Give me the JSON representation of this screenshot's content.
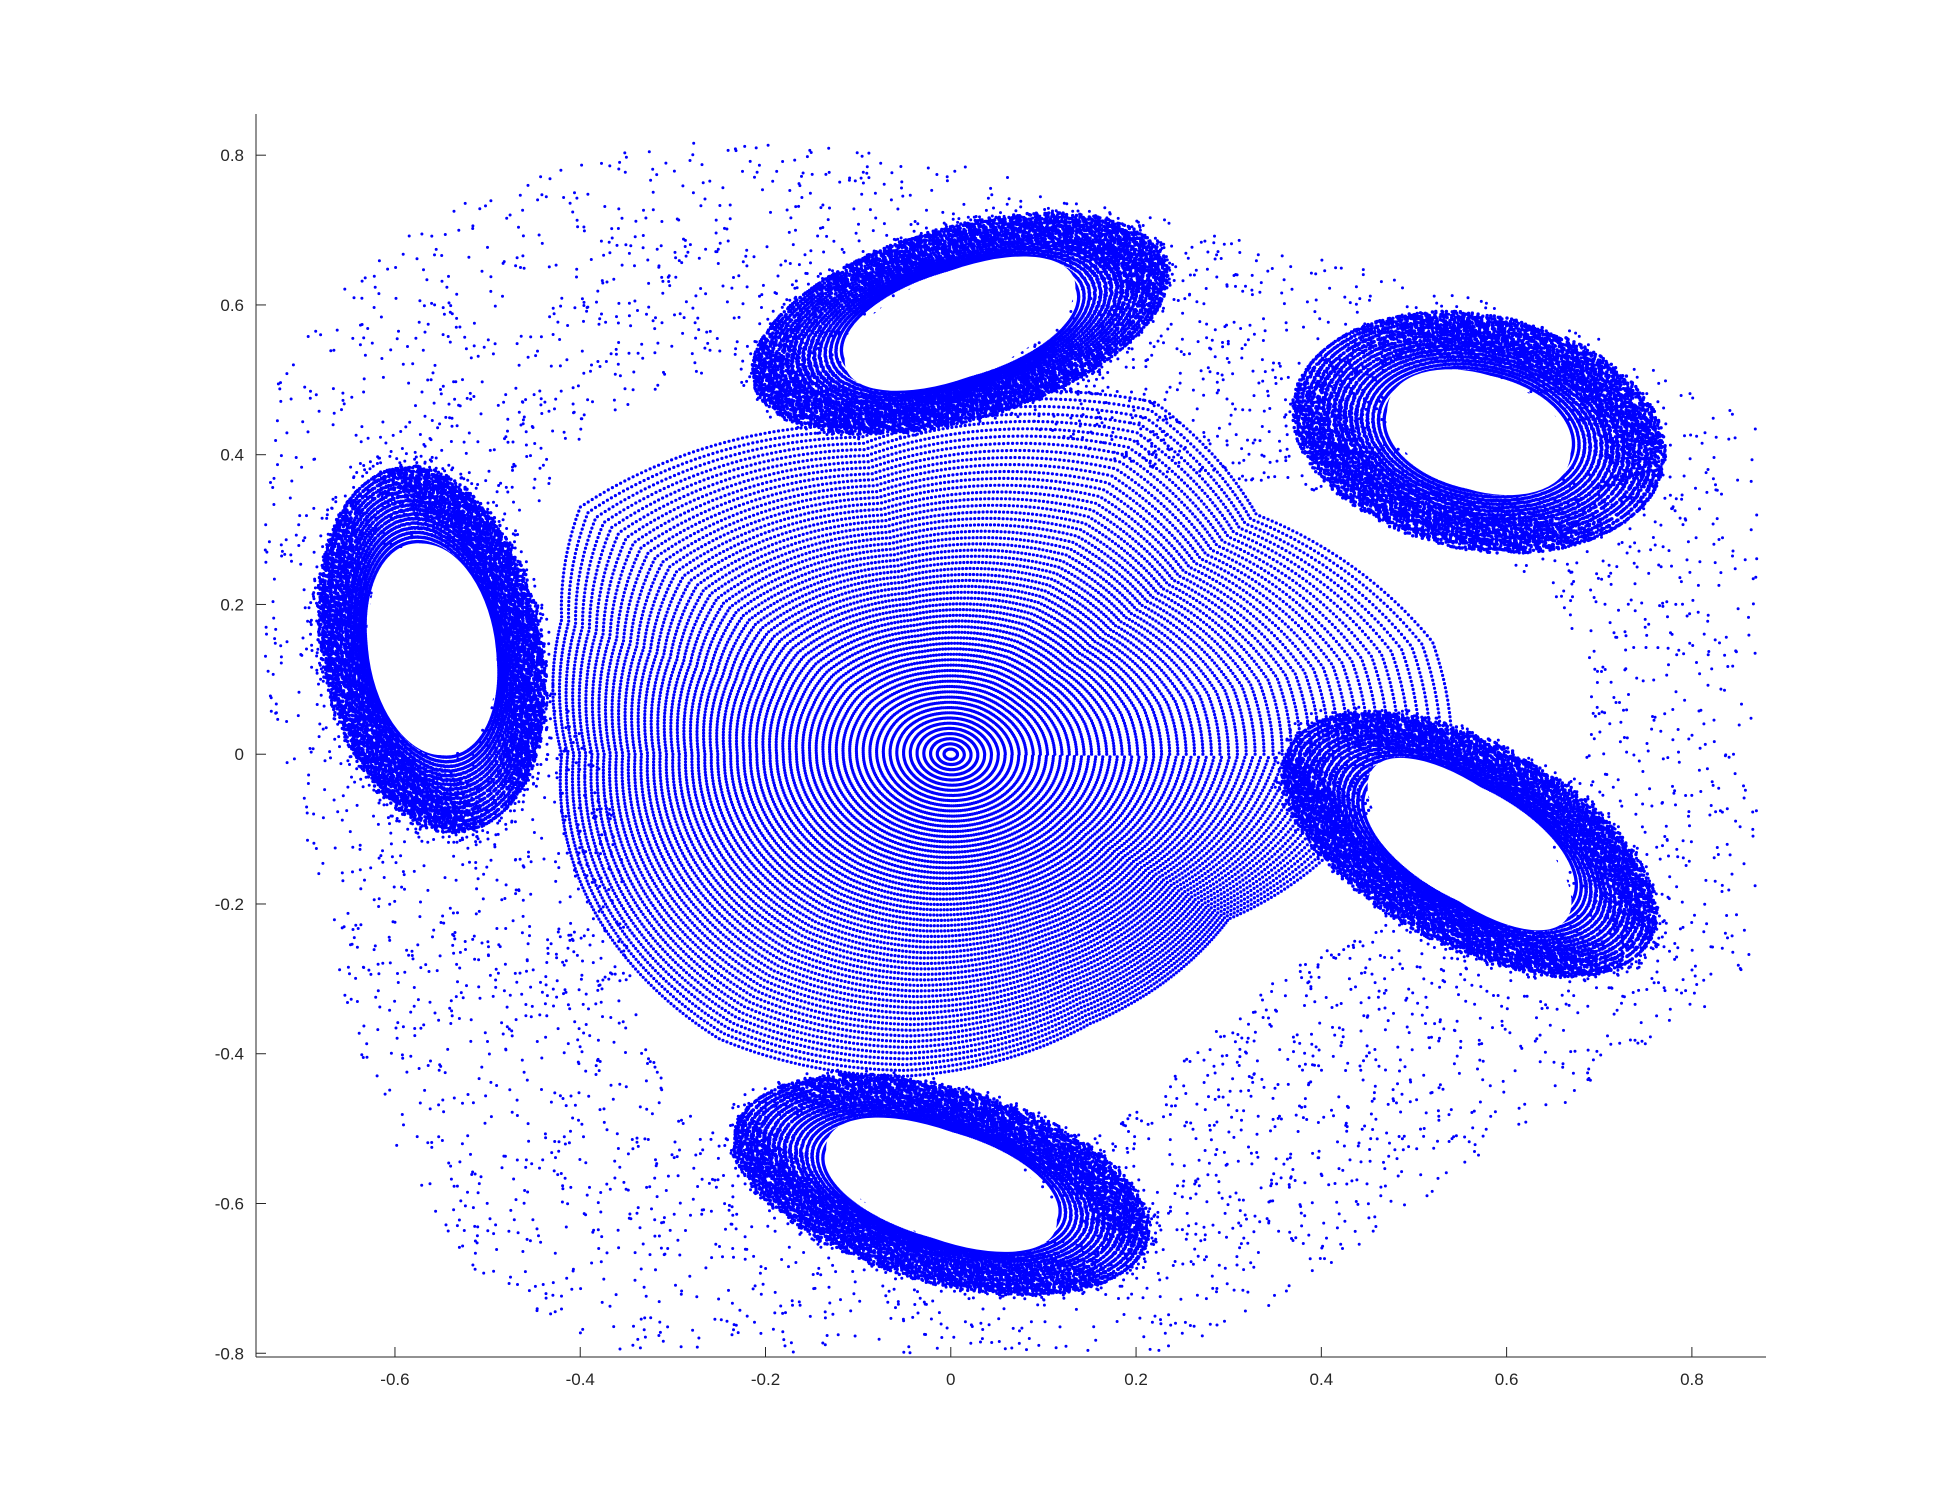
{
  "chart_data": {
    "type": "scatter",
    "title": "",
    "xlabel": "",
    "ylabel": "",
    "xlim": [
      -0.75,
      0.88
    ],
    "ylim": [
      -0.805,
      0.855
    ],
    "grid": false,
    "marker_color": "#0000ff",
    "x_ticks": [
      -0.6,
      -0.4,
      -0.2,
      0,
      0.2,
      0.4,
      0.6,
      0.8
    ],
    "x_tick_labels": [
      "-0.6",
      "-0.4",
      "-0.2",
      "0",
      "0.2",
      "0.4",
      "0.6",
      "0.8"
    ],
    "y_ticks": [
      -0.8,
      -0.6,
      -0.4,
      -0.2,
      0,
      0.2,
      0.4,
      0.6,
      0.8
    ],
    "y_tick_labels": [
      "-0.8",
      "-0.6",
      "-0.4",
      "-0.2",
      "0",
      "0.2",
      "0.4",
      "0.6",
      "0.8"
    ],
    "series": [
      {
        "structure": "central-elliptic-island",
        "center": [
          0.0,
          0.0
        ],
        "outer_boundary": [
          [
            -0.4,
            0.33
          ],
          [
            -0.1,
            0.44
          ],
          [
            0.22,
            0.47
          ],
          [
            0.33,
            0.32
          ],
          [
            0.52,
            0.15
          ],
          [
            0.47,
            -0.04
          ],
          [
            0.3,
            -0.22
          ],
          [
            0.15,
            -0.36
          ],
          [
            -0.05,
            -0.43
          ],
          [
            -0.25,
            -0.38
          ],
          [
            -0.38,
            -0.22
          ],
          [
            -0.42,
            0.0
          ],
          [
            -0.42,
            0.18
          ]
        ]
      },
      {
        "structure": "satellite-island-top",
        "center": [
          0.01,
          0.575
        ],
        "semi_axes": [
          0.135,
          0.072
        ],
        "tilt_deg": 22,
        "ring_width": 0.045
      },
      {
        "structure": "satellite-island-right-upper",
        "center": [
          0.57,
          0.43
        ],
        "semi_axes": [
          0.105,
          0.078
        ],
        "tilt_deg": -20,
        "ring_width": 0.045
      },
      {
        "structure": "satellite-island-right-lower",
        "center": [
          0.56,
          -0.12
        ],
        "semi_axes": [
          0.135,
          0.072
        ],
        "tilt_deg": -38,
        "ring_width": 0.045
      },
      {
        "structure": "satellite-island-bottom",
        "center": [
          -0.01,
          -0.575
        ],
        "semi_axes": [
          0.135,
          0.072
        ],
        "tilt_deg": -22,
        "ring_width": 0.045
      },
      {
        "structure": "satellite-island-left",
        "center": [
          -0.56,
          0.14
        ],
        "semi_axes": [
          0.07,
          0.145
        ],
        "tilt_deg": 8,
        "ring_width": 0.045
      },
      {
        "structure": "chaotic-sea",
        "extent_x": [
          -0.74,
          0.87
        ],
        "extent_y": [
          -0.8,
          0.85
        ]
      }
    ]
  }
}
